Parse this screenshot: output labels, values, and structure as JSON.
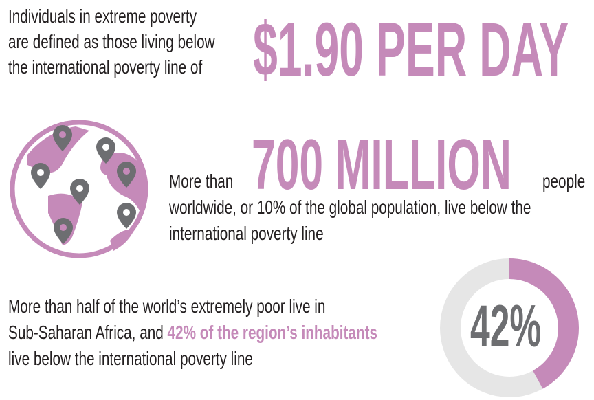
{
  "colors": {
    "accent": "#c58ab9",
    "pin": "#6d6e71",
    "ring_track": "#e6e6e6"
  },
  "section1": {
    "lines": [
      "Individuals in extreme poverty",
      "are defined as those living below",
      "the international poverty line of"
    ],
    "highlight": "$1.90 PER DAY"
  },
  "section2": {
    "icon": "globe-with-map-pins-icon",
    "prefix": "More than",
    "highlight": "700 MILLION",
    "suffix": "people",
    "lines": [
      "worldwide, or 10% of the global population, live below the",
      "international poverty line"
    ]
  },
  "section3": {
    "line1": "More than half of the world’s extremely poor live in",
    "line2_prefix": "Sub-Saharan Africa, and ",
    "line2_highlight": "42% of the region’s inhabitants",
    "line3": "live below the international poverty line",
    "donut": {
      "label": "42%",
      "percent": 42
    }
  }
}
